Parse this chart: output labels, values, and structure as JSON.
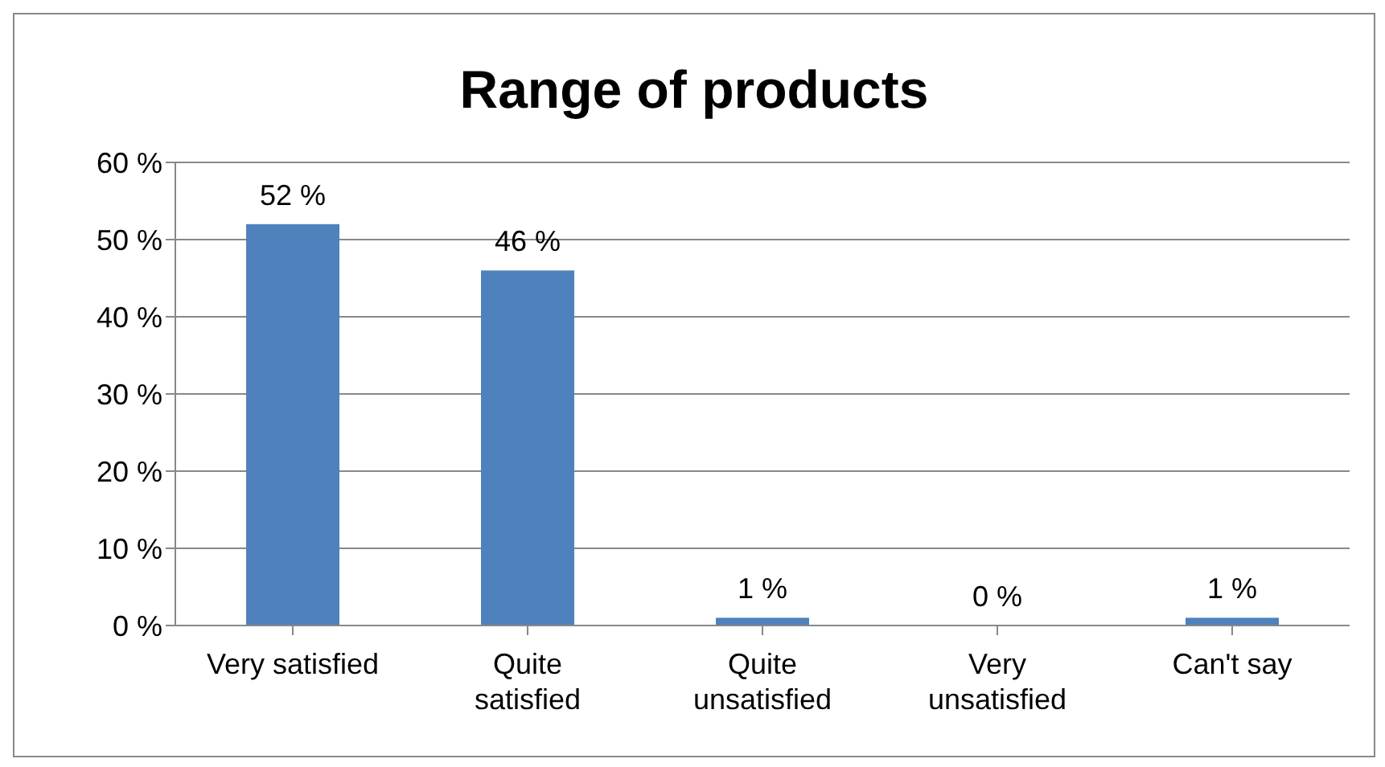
{
  "chart_data": {
    "type": "bar",
    "title": "Range of products",
    "categories": [
      "Very satisfied",
      "Quite\nsatisfied",
      "Quite\nunsatisfied",
      "Very\nunsatisfied",
      "Can't say"
    ],
    "values": [
      52,
      46,
      1,
      0,
      1
    ],
    "color": "#4f81bd",
    "value_labels": [
      "52 %",
      "46 %",
      "1 %",
      "0 %",
      "1 %"
    ],
    "ylim": [
      0,
      60
    ],
    "yticks": [
      {
        "value": 0,
        "label": "0 %"
      },
      {
        "value": 10,
        "label": "10 %"
      },
      {
        "value": 20,
        "label": "20 %"
      },
      {
        "value": 30,
        "label": "30 %"
      },
      {
        "value": 40,
        "label": "40 %"
      },
      {
        "value": 50,
        "label": "50 %"
      },
      {
        "value": 60,
        "label": "60 %"
      }
    ],
    "grid": "y",
    "legend": false
  }
}
